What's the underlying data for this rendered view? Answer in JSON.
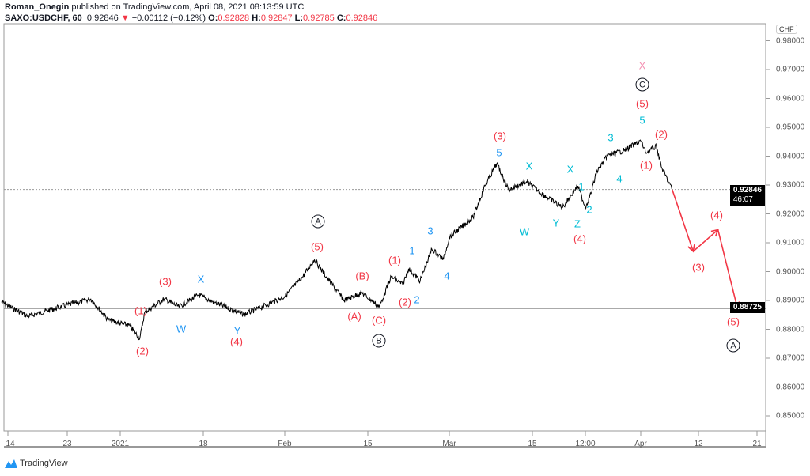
{
  "header": {
    "author": "Roman_Onegin",
    "published": "published on TradingView.com, April 08, 2021 08:13:59 UTC",
    "symbol": "SAXO:USDCHF, 60",
    "last": "0.92846",
    "change": "−0.00112 (−0.12%)",
    "o_label": "O:",
    "o": "0.92828",
    "h_label": "H:",
    "h": "0.92847",
    "l_label": "L:",
    "l": "0.92785",
    "c_label": "C:",
    "c": "0.92846",
    "down_icon": "triangle-down-icon"
  },
  "currency_badge": "CHF",
  "last_price_tag": {
    "price": "0.92846",
    "countdown": "46:07"
  },
  "level_tag": {
    "price": "0.88725"
  },
  "brand": "TradingView",
  "colors": {
    "red": "#f23645",
    "blue": "#2196f3",
    "cyan": "#00bcd4",
    "pink": "#f48fb1",
    "price": "#000000"
  },
  "chart_data": {
    "type": "line",
    "yaxis_ticks": [
      "0.85000",
      "0.86000",
      "0.87000",
      "0.88000",
      "0.89000",
      "0.90000",
      "0.91000",
      "0.92000",
      "0.93000",
      "0.94000",
      "0.95000",
      "0.96000",
      "0.97000",
      "0.98000"
    ],
    "ylim": [
      0.847,
      0.984
    ],
    "xaxis_ticks": [
      "14",
      "23",
      "2021",
      "18",
      "Feb",
      "15",
      "Mar",
      "15",
      "12:00",
      "Apr",
      "12",
      "21"
    ],
    "grid": false,
    "horizontal_level": 0.88725,
    "last_price": 0.92846,
    "series": [
      {
        "points": [
          [
            "2020-12-13",
            0.8895
          ],
          [
            "2020-12-17",
            0.8845
          ],
          [
            "2020-12-22",
            0.8878
          ],
          [
            "2020-12-27",
            0.8905
          ],
          [
            "2020-12-30",
            0.8832
          ],
          [
            "2021-01-03",
            0.8812
          ],
          [
            "2021-01-05",
            0.8768
          ],
          [
            "2021-01-06",
            0.8859
          ],
          [
            "2021-01-10",
            0.8905
          ],
          [
            "2021-01-13",
            0.8878
          ],
          [
            "2021-01-17",
            0.8919
          ],
          [
            "2021-01-20",
            0.8892
          ],
          [
            "2021-01-25",
            0.8851
          ],
          [
            "2021-01-29",
            0.8886
          ],
          [
            "2021-02-01",
            0.8914
          ],
          [
            "2021-02-04",
            0.8982
          ],
          [
            "2021-02-06",
            0.9042
          ],
          [
            "2021-02-08",
            0.8982
          ],
          [
            "2021-02-11",
            0.89
          ],
          [
            "2021-02-14",
            0.8927
          ],
          [
            "2021-02-17",
            0.8878
          ],
          [
            "2021-02-19",
            0.8982
          ],
          [
            "2021-02-21",
            0.8955
          ],
          [
            "2021-02-22",
            0.901
          ],
          [
            "2021-02-24",
            0.8968
          ],
          [
            "2021-02-26",
            0.9078
          ],
          [
            "2021-02-28",
            0.9042
          ],
          [
            "2021-03-01",
            0.9119
          ],
          [
            "2021-03-05",
            0.9188
          ],
          [
            "2021-03-07",
            0.9297
          ],
          [
            "2021-03-09",
            0.9374
          ],
          [
            "2021-03-11",
            0.9284
          ],
          [
            "2021-03-14",
            0.9311
          ],
          [
            "2021-03-17",
            0.9256
          ],
          [
            "2021-03-19",
            0.9223
          ],
          [
            "2021-03-21",
            0.9297
          ],
          [
            "2021-03-22",
            0.9223
          ],
          [
            "2021-03-23",
            0.927
          ],
          [
            "2021-03-24",
            0.9344
          ],
          [
            "2021-03-26",
            0.9401
          ],
          [
            "2021-03-29",
            0.942
          ],
          [
            "2021-04-01",
            0.9453
          ],
          [
            "2021-04-02",
            0.9412
          ],
          [
            "2021-04-04",
            0.9434
          ],
          [
            "2021-04-05",
            0.936
          ],
          [
            "2021-04-07",
            0.9284
          ]
        ]
      }
    ],
    "projection": [
      [
        "2021-04-07",
        0.9284
      ],
      [
        "2021-04-11",
        0.907
      ],
      [
        "2021-04-15",
        0.9145
      ],
      [
        "2021-04-18",
        0.88725
      ]
    ],
    "wave_labels": [
      {
        "text": "(1)",
        "color": "red"
      },
      {
        "text": "(2)",
        "color": "red"
      },
      {
        "text": "(3)",
        "color": "red"
      },
      {
        "text": "W",
        "color": "blue"
      },
      {
        "text": "X",
        "color": "blue"
      },
      {
        "text": "Y",
        "color": "blue"
      },
      {
        "text": "(4)",
        "color": "red"
      },
      {
        "text": "A",
        "color": "circle"
      },
      {
        "text": "(5)",
        "color": "red"
      },
      {
        "text": "(B)",
        "color": "red"
      },
      {
        "text": "(A)",
        "color": "red"
      },
      {
        "text": "(C)",
        "color": "red"
      },
      {
        "text": "B",
        "color": "circle"
      },
      {
        "text": "(1)",
        "color": "red"
      },
      {
        "text": "(2)",
        "color": "red"
      },
      {
        "text": "2",
        "color": "blue"
      },
      {
        "text": "1",
        "color": "blue"
      },
      {
        "text": "3",
        "color": "blue"
      },
      {
        "text": "4",
        "color": "blue"
      },
      {
        "text": "5",
        "color": "blue"
      },
      {
        "text": "(3)",
        "color": "red"
      },
      {
        "text": "X",
        "color": "cyan"
      },
      {
        "text": "W",
        "color": "cyan"
      },
      {
        "text": "Y",
        "color": "cyan"
      },
      {
        "text": "X",
        "color": "cyan"
      },
      {
        "text": "1",
        "color": "cyan"
      },
      {
        "text": "Z",
        "color": "cyan"
      },
      {
        "text": "2",
        "color": "cyan"
      },
      {
        "text": "(4)",
        "color": "red"
      },
      {
        "text": "3",
        "color": "cyan"
      },
      {
        "text": "4",
        "color": "cyan"
      },
      {
        "text": "5",
        "color": "cyan"
      },
      {
        "text": "(5)",
        "color": "red"
      },
      {
        "text": "C",
        "color": "circle"
      },
      {
        "text": "X",
        "color": "pink"
      },
      {
        "text": "(2)",
        "color": "red"
      },
      {
        "text": "(1)",
        "color": "red"
      },
      {
        "text": "(4)",
        "color": "red"
      },
      {
        "text": "(3)",
        "color": "red"
      },
      {
        "text": "(5)",
        "color": "red"
      },
      {
        "text": "A",
        "color": "circle"
      }
    ]
  }
}
